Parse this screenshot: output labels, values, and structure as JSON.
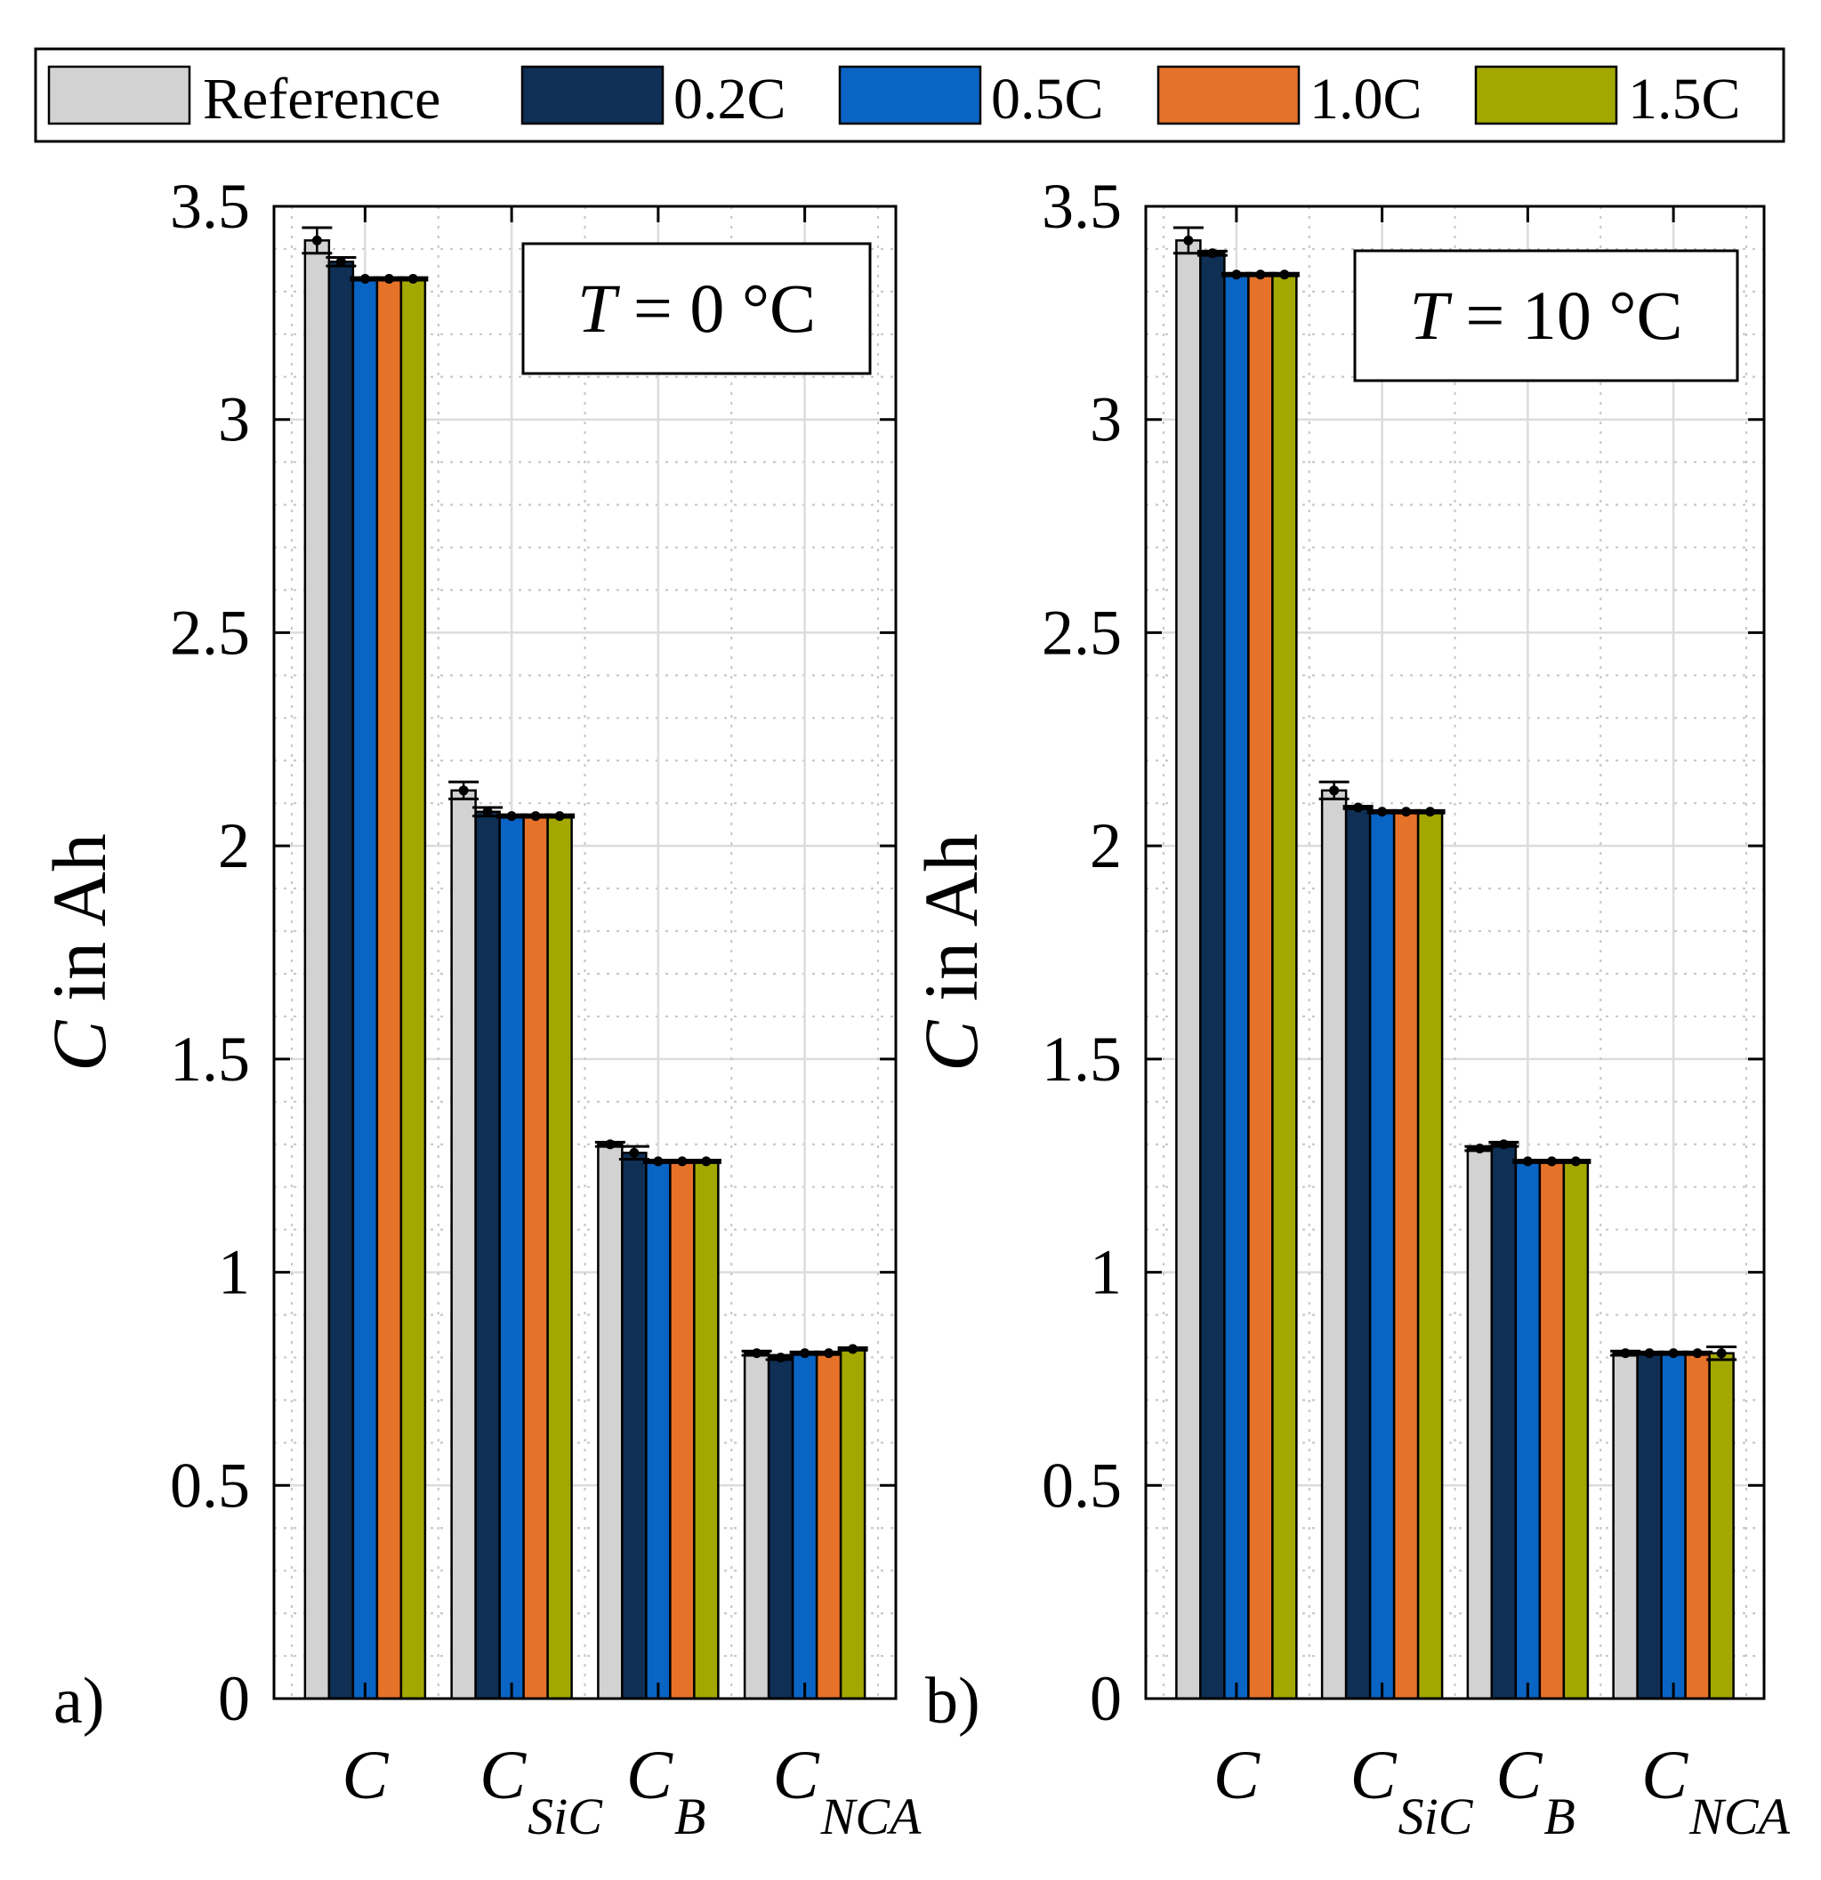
{
  "legend": {
    "items": [
      {
        "label": "Reference",
        "color": "#d2d2d2"
      },
      {
        "label": "0.2C",
        "color": "#0f2f55"
      },
      {
        "label": "0.5C",
        "color": "#0a64c3"
      },
      {
        "label": "1.0C",
        "color": "#e6722a"
      },
      {
        "label": "1.5C",
        "color": "#a3a800"
      }
    ]
  },
  "chart_data": [
    {
      "type": "bar",
      "panel_label": "a)",
      "annotation": {
        "var": "T",
        "eq": " = 0 °C"
      },
      "ylabel": {
        "var": "C",
        "rest": " in Ah"
      },
      "ylim": [
        0,
        3.5
      ],
      "yticks": [
        "0",
        "0.5",
        "1",
        "1.5",
        "2",
        "2.5",
        "3",
        "3.5"
      ],
      "categories": [
        {
          "main": "C",
          "sub": ""
        },
        {
          "main": "C",
          "sub": "SiC"
        },
        {
          "main": "C",
          "sub": "B"
        },
        {
          "main": "C",
          "sub": "NCA"
        }
      ],
      "series": [
        {
          "name": "Reference",
          "values": [
            3.42,
            2.13,
            1.3,
            0.81
          ],
          "errors": [
            0.03,
            0.02,
            0.005,
            0.005
          ]
        },
        {
          "name": "0.2C",
          "values": [
            3.37,
            2.08,
            1.28,
            0.8
          ],
          "errors": [
            0.01,
            0.01,
            0.015,
            0.005
          ]
        },
        {
          "name": "0.5C",
          "values": [
            3.33,
            2.07,
            1.26,
            0.81
          ],
          "errors": [
            0.003,
            0.003,
            0.003,
            0.003
          ]
        },
        {
          "name": "1.0C",
          "values": [
            3.33,
            2.07,
            1.26,
            0.81
          ],
          "errors": [
            0.003,
            0.003,
            0.003,
            0.003
          ]
        },
        {
          "name": "1.5C",
          "values": [
            3.33,
            2.07,
            1.26,
            0.82
          ],
          "errors": [
            0.003,
            0.003,
            0.003,
            0.003
          ]
        }
      ],
      "grid": true
    },
    {
      "type": "bar",
      "panel_label": "b)",
      "annotation": {
        "var": "T",
        "eq": " = 10 °C"
      },
      "ylabel": {
        "var": "C",
        "rest": " in Ah"
      },
      "ylim": [
        0,
        3.5
      ],
      "yticks": [
        "0",
        "0.5",
        "1",
        "1.5",
        "2",
        "2.5",
        "3",
        "3.5"
      ],
      "categories": [
        {
          "main": "C",
          "sub": ""
        },
        {
          "main": "C",
          "sub": "SiC"
        },
        {
          "main": "C",
          "sub": "B"
        },
        {
          "main": "C",
          "sub": "NCA"
        }
      ],
      "series": [
        {
          "name": "Reference",
          "values": [
            3.42,
            2.13,
            1.29,
            0.81
          ],
          "errors": [
            0.03,
            0.02,
            0.005,
            0.005
          ]
        },
        {
          "name": "0.2C",
          "values": [
            3.39,
            2.09,
            1.3,
            0.81
          ],
          "errors": [
            0.005,
            0.003,
            0.005,
            0.003
          ]
        },
        {
          "name": "0.5C",
          "values": [
            3.34,
            2.08,
            1.26,
            0.81
          ],
          "errors": [
            0.003,
            0.003,
            0.003,
            0.003
          ]
        },
        {
          "name": "1.0C",
          "values": [
            3.34,
            2.08,
            1.26,
            0.81
          ],
          "errors": [
            0.003,
            0.003,
            0.003,
            0.003
          ]
        },
        {
          "name": "1.5C",
          "values": [
            3.34,
            2.08,
            1.26,
            0.81
          ],
          "errors": [
            0.003,
            0.003,
            0.003,
            0.015
          ]
        }
      ],
      "grid": true
    }
  ]
}
